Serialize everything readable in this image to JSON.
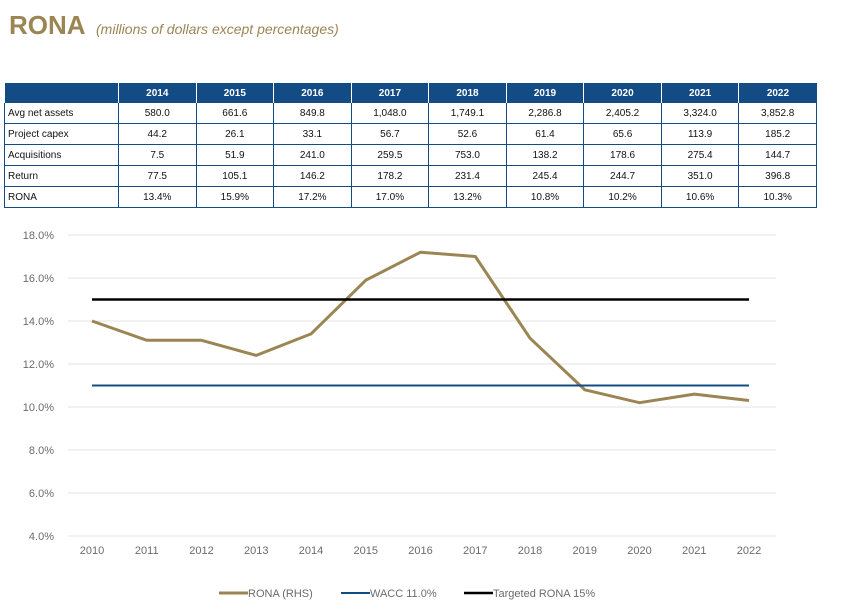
{
  "header": {
    "title": "RONA",
    "subtitle": "(millions of dollars except percentages)"
  },
  "table": {
    "columns": [
      "2014",
      "2015",
      "2016",
      "2017",
      "2018",
      "2019",
      "2020",
      "2021",
      "2022"
    ],
    "rows": [
      {
        "label": "Avg net assets",
        "values": [
          "580.0",
          "661.6",
          "849.8",
          "1,048.0",
          "1,749.1",
          "2,286.8",
          "2,405.2",
          "3,324.0",
          "3,852.8"
        ]
      },
      {
        "label": "Project capex",
        "values": [
          "44.2",
          "26.1",
          "33.1",
          "56.7",
          "52.6",
          "61.4",
          "65.6",
          "113.9",
          "185.2"
        ]
      },
      {
        "label": "Acquisitions",
        "values": [
          "7.5",
          "51.9",
          "241.0",
          "259.5",
          "753.0",
          "138.2",
          "178.6",
          "275.4",
          "144.7"
        ]
      },
      {
        "label": "Return",
        "values": [
          "77.5",
          "105.1",
          "146.2",
          "178.2",
          "231.4",
          "245.4",
          "244.7",
          "351.0",
          "396.8"
        ]
      },
      {
        "label": "RONA",
        "values": [
          "13.4%",
          "15.9%",
          "17.2%",
          "17.0%",
          "13.2%",
          "10.8%",
          "10.2%",
          "10.6%",
          "10.3%"
        ]
      }
    ],
    "header_color": "#134C85"
  },
  "chart_data": {
    "type": "line",
    "x": [
      "2010",
      "2011",
      "2012",
      "2013",
      "2014",
      "2015",
      "2016",
      "2017",
      "2018",
      "2019",
      "2020",
      "2021",
      "2022"
    ],
    "ylim": [
      4.0,
      18.0
    ],
    "yticks": [
      "4.0%",
      "6.0%",
      "8.0%",
      "10.0%",
      "12.0%",
      "14.0%",
      "16.0%",
      "18.0%"
    ],
    "ytick_values": [
      4,
      6,
      8,
      10,
      12,
      14,
      16,
      18
    ],
    "grid": true,
    "legend_position": "bottom",
    "series": [
      {
        "name": "RONA (RHS)",
        "color": "#9B8553",
        "values": [
          14.0,
          13.1,
          13.1,
          12.4,
          13.4,
          15.9,
          17.2,
          17.0,
          13.2,
          10.8,
          10.2,
          10.6,
          10.3
        ]
      },
      {
        "name": "WACC 11.0%",
        "color": "#134C85",
        "values": [
          11.0,
          11.0,
          11.0,
          11.0,
          11.0,
          11.0,
          11.0,
          11.0,
          11.0,
          11.0,
          11.0,
          11.0,
          11.0
        ]
      },
      {
        "name": "Targeted RONA 15%",
        "color": "#000000",
        "values": [
          15.0,
          15.0,
          15.0,
          15.0,
          15.0,
          15.0,
          15.0,
          15.0,
          15.0,
          15.0,
          15.0,
          15.0,
          15.0
        ]
      }
    ]
  }
}
